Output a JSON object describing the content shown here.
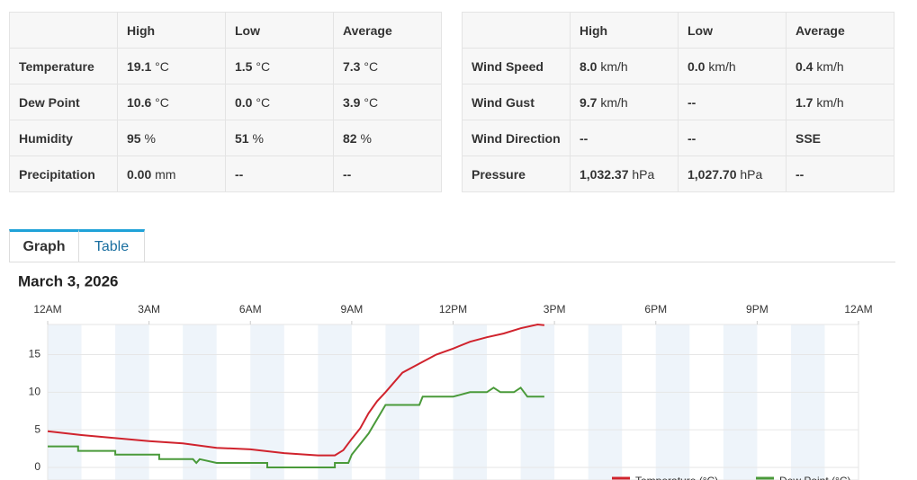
{
  "weather_tables": [
    {
      "columns": [
        "High",
        "Low",
        "Average"
      ],
      "rows": [
        {
          "label": "Temperature",
          "cells": [
            {
              "value": "19.1",
              "unit": "°C"
            },
            {
              "value": "1.5",
              "unit": "°C"
            },
            {
              "value": "7.3",
              "unit": "°C"
            }
          ]
        },
        {
          "label": "Dew Point",
          "cells": [
            {
              "value": "10.6",
              "unit": "°C"
            },
            {
              "value": "0.0",
              "unit": "°C"
            },
            {
              "value": "3.9",
              "unit": "°C"
            }
          ]
        },
        {
          "label": "Humidity",
          "cells": [
            {
              "value": "95",
              "unit": "%"
            },
            {
              "value": "51",
              "unit": "%"
            },
            {
              "value": "82",
              "unit": "%"
            }
          ]
        },
        {
          "label": "Precipitation",
          "cells": [
            {
              "value": "0.00",
              "unit": "mm"
            },
            {
              "value": "--"
            },
            {
              "value": "--"
            }
          ]
        }
      ]
    },
    {
      "columns": [
        "High",
        "Low",
        "Average"
      ],
      "rows": [
        {
          "label": "Wind Speed",
          "cells": [
            {
              "value": "8.0",
              "unit": "km/h"
            },
            {
              "value": "0.0",
              "unit": "km/h"
            },
            {
              "value": "0.4",
              "unit": "km/h"
            }
          ]
        },
        {
          "label": "Wind Gust",
          "cells": [
            {
              "value": "9.7",
              "unit": "km/h"
            },
            {
              "value": "--"
            },
            {
              "value": "1.7",
              "unit": "km/h"
            }
          ]
        },
        {
          "label": "Wind Direction",
          "cells": [
            {
              "value": "--"
            },
            {
              "value": "--"
            },
            {
              "value": "SSE"
            }
          ]
        },
        {
          "label": "Pressure",
          "cells": [
            {
              "value": "1,032.37",
              "unit": "hPa"
            },
            {
              "value": "1,027.70",
              "unit": "hPa"
            },
            {
              "value": "--"
            }
          ]
        }
      ]
    }
  ],
  "tabs": [
    "Graph",
    "Table"
  ],
  "chart_data": {
    "type": "line",
    "title": "March 3, 2026",
    "xlim": [
      0,
      24
    ],
    "xticks": [
      {
        "value": 0,
        "label": "12AM"
      },
      {
        "value": 3,
        "label": "3AM"
      },
      {
        "value": 6,
        "label": "6AM"
      },
      {
        "value": 9,
        "label": "9AM"
      },
      {
        "value": 12,
        "label": "12PM"
      },
      {
        "value": 15,
        "label": "3PM"
      },
      {
        "value": 18,
        "label": "6PM"
      },
      {
        "value": 21,
        "label": "9PM"
      },
      {
        "value": 24,
        "label": "12AM"
      }
    ],
    "ylim": [
      0,
      19
    ],
    "yticks": [
      0,
      5,
      10,
      15
    ],
    "grid": true,
    "series": [
      {
        "name": "Temperature (°C)",
        "color": "#d0232d",
        "x": [
          0,
          1,
          2,
          3,
          4,
          5,
          6,
          7,
          8,
          8.5,
          8.75,
          9,
          9.25,
          9.5,
          9.75,
          10,
          10.5,
          11,
          11.5,
          12,
          12.5,
          13,
          13.5,
          14,
          14.5,
          14.7
        ],
        "values": [
          4.8,
          4.3,
          3.9,
          3.5,
          3.2,
          2.6,
          2.4,
          1.9,
          1.6,
          1.6,
          2.3,
          3.8,
          5.2,
          7.2,
          8.8,
          10.0,
          12.6,
          13.8,
          15.0,
          15.8,
          16.7,
          17.3,
          17.8,
          18.5,
          19.0,
          18.9
        ]
      },
      {
        "name": "Dew Point (°C)",
        "color": "#4a9a3a",
        "x": [
          0,
          0.9,
          0.9,
          2,
          2,
          3.3,
          3.3,
          4.3,
          4.4,
          4.5,
          5,
          6.5,
          6.5,
          8.5,
          8.5,
          8.9,
          9,
          9.5,
          10,
          11,
          11.1,
          12,
          12.5,
          13,
          13.2,
          13.4,
          13.8,
          14,
          14.2,
          14.5,
          14.7
        ],
        "values": [
          2.8,
          2.8,
          2.2,
          2.2,
          1.7,
          1.7,
          1.1,
          1.1,
          0.6,
          1.1,
          0.6,
          0.6,
          0,
          0,
          0.6,
          0.6,
          1.7,
          4.5,
          8.3,
          8.3,
          9.4,
          9.4,
          10.0,
          10.0,
          10.6,
          10.0,
          10.0,
          10.6,
          9.4,
          9.4,
          9.4
        ]
      }
    ]
  }
}
